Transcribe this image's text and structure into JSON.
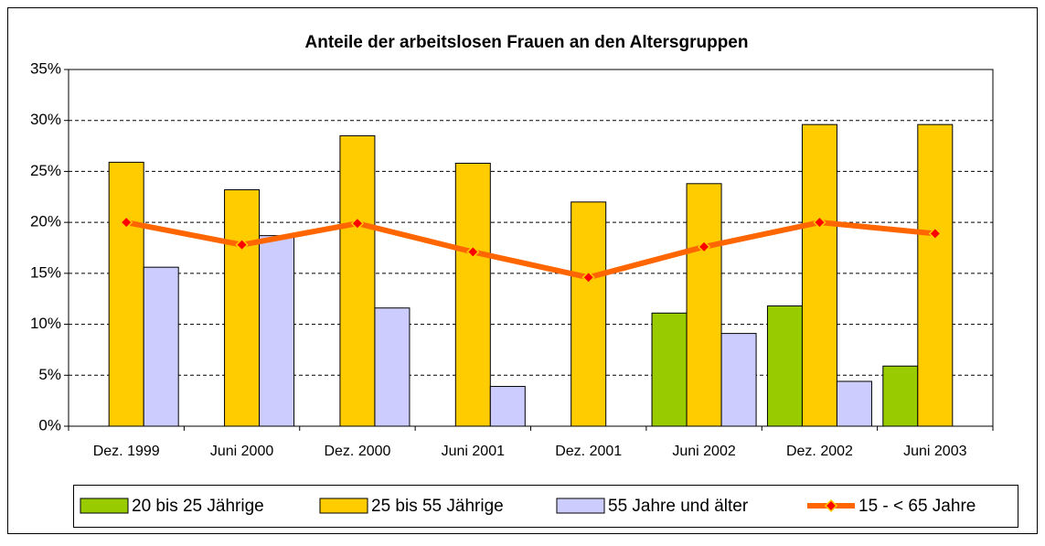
{
  "chart_data": {
    "type": "bar_line",
    "title": "Anteile der arbeitslosen Frauen an den Altersgruppen",
    "categories": [
      "Dez. 1999",
      "Juni 2000",
      "Dez. 2000",
      "Juni 2001",
      "Dez. 2001",
      "Juni 2002",
      "Dez. 2002",
      "Juni 2003"
    ],
    "series": [
      {
        "name": "20 bis 25 Jährige",
        "color": "#99cc00",
        "kind": "bar",
        "values": [
          null,
          null,
          null,
          null,
          null,
          11.1,
          11.8,
          5.9
        ]
      },
      {
        "name": "25 bis 55 Jährige",
        "color": "#ffcc00",
        "kind": "bar",
        "values": [
          25.9,
          23.2,
          28.5,
          25.8,
          22.0,
          23.8,
          29.6,
          29.6
        ]
      },
      {
        "name": "55 Jahre und älter",
        "color": "#ccccff",
        "kind": "bar",
        "values": [
          15.6,
          18.7,
          11.6,
          3.9,
          null,
          9.1,
          4.4,
          null
        ]
      },
      {
        "name": "15 - < 65 Jahre",
        "color": "#ff6600",
        "marker_color": "#ff0000",
        "kind": "line",
        "values": [
          20.0,
          17.8,
          19.9,
          17.1,
          14.6,
          17.6,
          20.0,
          18.9
        ]
      }
    ],
    "ylim": [
      0,
      35
    ],
    "yticks": [
      {
        "value": 0,
        "label": "0%"
      },
      {
        "value": 5,
        "label": "5%"
      },
      {
        "value": 10,
        "label": "10%"
      },
      {
        "value": 15,
        "label": "15%"
      },
      {
        "value": 20,
        "label": "20%"
      },
      {
        "value": 25,
        "label": "25%"
      },
      {
        "value": 30,
        "label": "30%"
      },
      {
        "value": 35,
        "label": "35%"
      }
    ],
    "grid": true,
    "legend": "bottom"
  }
}
